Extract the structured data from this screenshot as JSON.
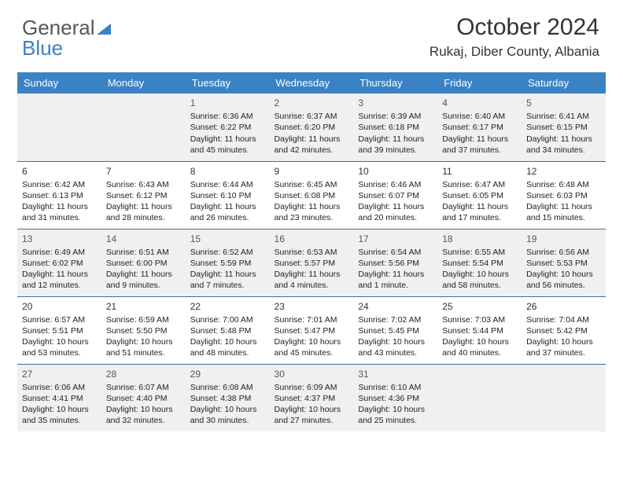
{
  "brand": {
    "part1": "General",
    "part2": "Blue"
  },
  "colors": {
    "header_bg": "#3b82c4",
    "header_text": "#ffffff",
    "row_border": "#3b6fa0",
    "shaded_bg": "#f0f0f0",
    "page_bg": "#ffffff",
    "logo_gray": "#53585d",
    "logo_blue": "#3b82c4"
  },
  "title": "October 2024",
  "location": "Rukaj, Diber County, Albania",
  "day_headers": [
    "Sunday",
    "Monday",
    "Tuesday",
    "Wednesday",
    "Thursday",
    "Friday",
    "Saturday"
  ],
  "weeks": [
    [
      {
        "blank": true
      },
      {
        "blank": true
      },
      {
        "num": "1",
        "sunrise": "Sunrise: 6:36 AM",
        "sunset": "Sunset: 6:22 PM",
        "daylight": "Daylight: 11 hours and 45 minutes."
      },
      {
        "num": "2",
        "sunrise": "Sunrise: 6:37 AM",
        "sunset": "Sunset: 6:20 PM",
        "daylight": "Daylight: 11 hours and 42 minutes."
      },
      {
        "num": "3",
        "sunrise": "Sunrise: 6:39 AM",
        "sunset": "Sunset: 6:18 PM",
        "daylight": "Daylight: 11 hours and 39 minutes."
      },
      {
        "num": "4",
        "sunrise": "Sunrise: 6:40 AM",
        "sunset": "Sunset: 6:17 PM",
        "daylight": "Daylight: 11 hours and 37 minutes."
      },
      {
        "num": "5",
        "sunrise": "Sunrise: 6:41 AM",
        "sunset": "Sunset: 6:15 PM",
        "daylight": "Daylight: 11 hours and 34 minutes."
      }
    ],
    [
      {
        "num": "6",
        "sunrise": "Sunrise: 6:42 AM",
        "sunset": "Sunset: 6:13 PM",
        "daylight": "Daylight: 11 hours and 31 minutes."
      },
      {
        "num": "7",
        "sunrise": "Sunrise: 6:43 AM",
        "sunset": "Sunset: 6:12 PM",
        "daylight": "Daylight: 11 hours and 28 minutes."
      },
      {
        "num": "8",
        "sunrise": "Sunrise: 6:44 AM",
        "sunset": "Sunset: 6:10 PM",
        "daylight": "Daylight: 11 hours and 26 minutes."
      },
      {
        "num": "9",
        "sunrise": "Sunrise: 6:45 AM",
        "sunset": "Sunset: 6:08 PM",
        "daylight": "Daylight: 11 hours and 23 minutes."
      },
      {
        "num": "10",
        "sunrise": "Sunrise: 6:46 AM",
        "sunset": "Sunset: 6:07 PM",
        "daylight": "Daylight: 11 hours and 20 minutes."
      },
      {
        "num": "11",
        "sunrise": "Sunrise: 6:47 AM",
        "sunset": "Sunset: 6:05 PM",
        "daylight": "Daylight: 11 hours and 17 minutes."
      },
      {
        "num": "12",
        "sunrise": "Sunrise: 6:48 AM",
        "sunset": "Sunset: 6:03 PM",
        "daylight": "Daylight: 11 hours and 15 minutes."
      }
    ],
    [
      {
        "num": "13",
        "sunrise": "Sunrise: 6:49 AM",
        "sunset": "Sunset: 6:02 PM",
        "daylight": "Daylight: 11 hours and 12 minutes."
      },
      {
        "num": "14",
        "sunrise": "Sunrise: 6:51 AM",
        "sunset": "Sunset: 6:00 PM",
        "daylight": "Daylight: 11 hours and 9 minutes."
      },
      {
        "num": "15",
        "sunrise": "Sunrise: 6:52 AM",
        "sunset": "Sunset: 5:59 PM",
        "daylight": "Daylight: 11 hours and 7 minutes."
      },
      {
        "num": "16",
        "sunrise": "Sunrise: 6:53 AM",
        "sunset": "Sunset: 5:57 PM",
        "daylight": "Daylight: 11 hours and 4 minutes."
      },
      {
        "num": "17",
        "sunrise": "Sunrise: 6:54 AM",
        "sunset": "Sunset: 5:56 PM",
        "daylight": "Daylight: 11 hours and 1 minute."
      },
      {
        "num": "18",
        "sunrise": "Sunrise: 6:55 AM",
        "sunset": "Sunset: 5:54 PM",
        "daylight": "Daylight: 10 hours and 58 minutes."
      },
      {
        "num": "19",
        "sunrise": "Sunrise: 6:56 AM",
        "sunset": "Sunset: 5:53 PM",
        "daylight": "Daylight: 10 hours and 56 minutes."
      }
    ],
    [
      {
        "num": "20",
        "sunrise": "Sunrise: 6:57 AM",
        "sunset": "Sunset: 5:51 PM",
        "daylight": "Daylight: 10 hours and 53 minutes."
      },
      {
        "num": "21",
        "sunrise": "Sunrise: 6:59 AM",
        "sunset": "Sunset: 5:50 PM",
        "daylight": "Daylight: 10 hours and 51 minutes."
      },
      {
        "num": "22",
        "sunrise": "Sunrise: 7:00 AM",
        "sunset": "Sunset: 5:48 PM",
        "daylight": "Daylight: 10 hours and 48 minutes."
      },
      {
        "num": "23",
        "sunrise": "Sunrise: 7:01 AM",
        "sunset": "Sunset: 5:47 PM",
        "daylight": "Daylight: 10 hours and 45 minutes."
      },
      {
        "num": "24",
        "sunrise": "Sunrise: 7:02 AM",
        "sunset": "Sunset: 5:45 PM",
        "daylight": "Daylight: 10 hours and 43 minutes."
      },
      {
        "num": "25",
        "sunrise": "Sunrise: 7:03 AM",
        "sunset": "Sunset: 5:44 PM",
        "daylight": "Daylight: 10 hours and 40 minutes."
      },
      {
        "num": "26",
        "sunrise": "Sunrise: 7:04 AM",
        "sunset": "Sunset: 5:42 PM",
        "daylight": "Daylight: 10 hours and 37 minutes."
      }
    ],
    [
      {
        "num": "27",
        "sunrise": "Sunrise: 6:06 AM",
        "sunset": "Sunset: 4:41 PM",
        "daylight": "Daylight: 10 hours and 35 minutes."
      },
      {
        "num": "28",
        "sunrise": "Sunrise: 6:07 AM",
        "sunset": "Sunset: 4:40 PM",
        "daylight": "Daylight: 10 hours and 32 minutes."
      },
      {
        "num": "29",
        "sunrise": "Sunrise: 6:08 AM",
        "sunset": "Sunset: 4:38 PM",
        "daylight": "Daylight: 10 hours and 30 minutes."
      },
      {
        "num": "30",
        "sunrise": "Sunrise: 6:09 AM",
        "sunset": "Sunset: 4:37 PM",
        "daylight": "Daylight: 10 hours and 27 minutes."
      },
      {
        "num": "31",
        "sunrise": "Sunrise: 6:10 AM",
        "sunset": "Sunset: 4:36 PM",
        "daylight": "Daylight: 10 hours and 25 minutes."
      },
      {
        "blank": true
      },
      {
        "blank": true
      }
    ]
  ]
}
